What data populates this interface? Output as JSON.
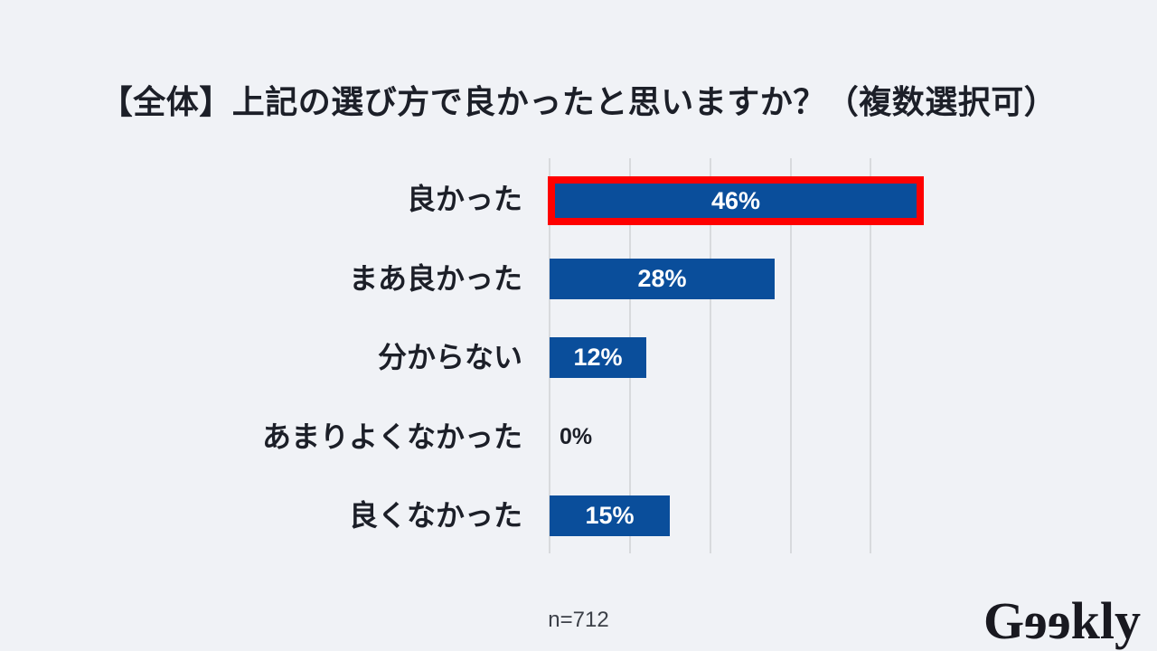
{
  "page": {
    "title": "【全体】上記の選び方で良かったと思いますか？（複数選択可）",
    "footnote": "n=712",
    "logo": {
      "name": "Geekly",
      "g": "G",
      "e1": "e",
      "e2": "e",
      "rest": "kly"
    }
  },
  "colors": {
    "background": "#F0F2F6",
    "bar": "#0A4E9B",
    "highlight_border": "#FE0000",
    "gridline": "#D8DADD",
    "text_dark": "#1C1F28",
    "value_text": "#FFFFFF",
    "footnote_text": "#3C4048"
  },
  "chart_data": {
    "type": "bar",
    "orientation": "horizontal",
    "title": "【全体】上記の選び方で良かったと思いますか？（複数選択可）",
    "categories": [
      "良かった",
      "まあ良かった",
      "分からない",
      "あまりよくなかった",
      "良くなかった"
    ],
    "values": [
      46,
      28,
      12,
      0,
      15
    ],
    "value_labels": [
      "46%",
      "28%",
      "12%",
      "0%",
      "15%"
    ],
    "unit": "%",
    "highlighted_index": 0,
    "highlight_style": "red-border",
    "xlim": [
      0,
      40
    ],
    "gridline_interval": 10,
    "grid": true,
    "legend": "none",
    "sample_size": "n=712"
  }
}
